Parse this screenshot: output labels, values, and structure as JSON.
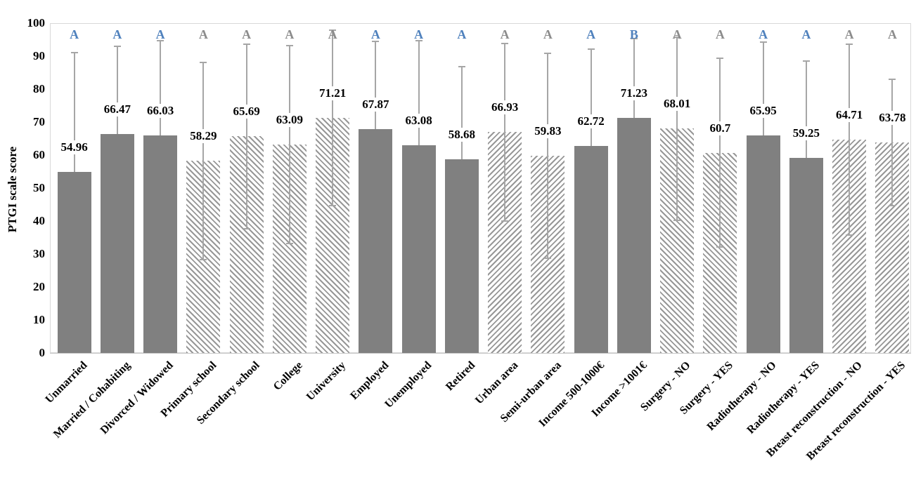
{
  "figure": {
    "y_axis_title": "PTGI scale score"
  },
  "colors": {
    "solid_bar": "#808080",
    "hatch_stripe": "#979797",
    "error_bar": "#a6a6a6",
    "letter_blue": "#4f81bd",
    "letter_gray": "#8c8c8c",
    "plot_border": "#d9d9d9",
    "text": "#000000"
  },
  "chart_data": {
    "type": "bar",
    "title": "",
    "xlabel": "",
    "ylabel": "PTGI scale score",
    "ylim": [
      0,
      100
    ],
    "yticks": [
      0,
      10,
      20,
      30,
      40,
      50,
      60,
      70,
      80,
      90,
      100
    ],
    "grid": false,
    "legend": false,
    "categories": [
      "Unmarried",
      "Married / Cohabiting",
      "Divorced / Widowed",
      "Primary school",
      "Secondary school",
      "College",
      "University",
      "Employed",
      "Unemployed",
      "Retired",
      "Urban area",
      "Semi-urban area",
      "Income 500-1000€",
      "Income >1001€",
      "Surgery - NO",
      "Surgery - YES",
      "Radiotherapy - NO",
      "Radiotherapy - YES",
      "Breast reconstruction - NO",
      "Breast reconstruction - YES"
    ],
    "values": [
      54.96,
      66.47,
      66.03,
      58.29,
      65.69,
      63.09,
      71.21,
      67.87,
      63.08,
      58.68,
      66.93,
      59.83,
      62.72,
      71.23,
      68.01,
      60.7,
      65.95,
      59.25,
      64.71,
      63.78
    ],
    "value_labels": [
      "54.96",
      "66.47",
      "66.03",
      "58.29",
      "65.69",
      "63.09",
      "71.21",
      "67.87",
      "63.08",
      "58.68",
      "66.93",
      "59.83",
      "62.72",
      "71.23",
      "68.01",
      "60.7",
      "65.95",
      "59.25",
      "64.71",
      "63.78"
    ],
    "error_sd": [
      36.0,
      26.5,
      28.6,
      29.9,
      28.0,
      30.0,
      26.6,
      26.7,
      31.7,
      28.1,
      27.0,
      31.1,
      29.5,
      24.1,
      27.7,
      28.6,
      28.3,
      29.3,
      29.0,
      19.2
    ],
    "bar_patterns": [
      "solid",
      "solid",
      "solid",
      "hatch-back",
      "hatch-back",
      "hatch-back",
      "hatch-back",
      "solid",
      "solid",
      "solid",
      "hatch-fwd",
      "hatch-fwd",
      "solid",
      "solid",
      "hatch-back",
      "hatch-back",
      "solid",
      "solid",
      "hatch-fwd",
      "hatch-fwd"
    ],
    "significance_letters": [
      {
        "text": "A",
        "tone": "blue"
      },
      {
        "text": "A",
        "tone": "blue"
      },
      {
        "text": "A",
        "tone": "blue"
      },
      {
        "text": "A",
        "tone": "gray"
      },
      {
        "text": "A",
        "tone": "gray"
      },
      {
        "text": "A",
        "tone": "gray"
      },
      {
        "text": "A",
        "tone": "gray"
      },
      {
        "text": "A",
        "tone": "blue"
      },
      {
        "text": "A",
        "tone": "blue"
      },
      {
        "text": "A",
        "tone": "blue"
      },
      {
        "text": "A",
        "tone": "gray"
      },
      {
        "text": "A",
        "tone": "gray"
      },
      {
        "text": "A",
        "tone": "blue"
      },
      {
        "text": "B",
        "tone": "blue"
      },
      {
        "text": "A",
        "tone": "gray"
      },
      {
        "text": "A",
        "tone": "gray"
      },
      {
        "text": "A",
        "tone": "blue"
      },
      {
        "text": "A",
        "tone": "blue"
      },
      {
        "text": "A",
        "tone": "gray"
      },
      {
        "text": "A",
        "tone": "gray"
      }
    ]
  },
  "layout_note": "error bars show mean ± SD; lower whisker visible only on hatched bars"
}
